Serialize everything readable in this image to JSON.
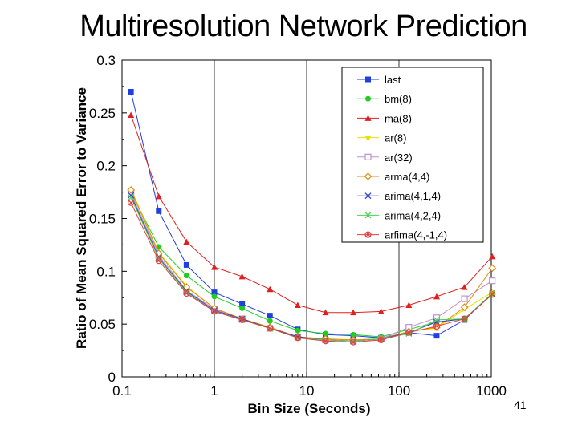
{
  "slide": {
    "title": "Multiresolution Network Prediction",
    "page_number": "41"
  },
  "chart_data": {
    "type": "line",
    "title": "",
    "xlabel": "Bin Size (Seconds)",
    "ylabel": "Ratio of Mean Squared Error to Variance",
    "xscale": "log",
    "xlim": [
      0.1,
      1000
    ],
    "ylim": [
      0,
      0.3
    ],
    "xticks": [
      0.1,
      1,
      10,
      100,
      1000
    ],
    "xtick_labels": [
      "0.1",
      "1",
      "10",
      "100",
      "1000"
    ],
    "yticks": [
      0,
      0.05,
      0.1,
      0.15,
      0.2,
      0.25,
      0.3
    ],
    "ytick_labels": [
      "0",
      "0.05",
      "0.1",
      "0.15",
      "0.2",
      "0.25",
      "0.3"
    ],
    "legend_position": "top-right",
    "x": [
      0.125,
      0.25,
      0.5,
      1,
      2,
      4,
      8,
      16,
      32,
      64,
      128,
      256,
      512,
      1024
    ],
    "series": [
      {
        "name": "last",
        "color": "#1f3fe0",
        "marker": "square-filled",
        "values": [
          0.27,
          0.157,
          0.106,
          0.08,
          0.069,
          0.058,
          0.045,
          0.04,
          0.039,
          0.037,
          0.042,
          0.039,
          0.054,
          0.079
        ]
      },
      {
        "name": "bm(8)",
        "color": "#22cc22",
        "marker": "circle-filled",
        "values": [
          0.175,
          0.123,
          0.096,
          0.076,
          0.065,
          0.053,
          0.044,
          0.041,
          0.04,
          0.038,
          0.045,
          0.052,
          0.055,
          0.079
        ]
      },
      {
        "name": "ma(8)",
        "color": "#e02020",
        "marker": "triangle-filled",
        "values": [
          0.248,
          0.171,
          0.128,
          0.104,
          0.095,
          0.083,
          0.068,
          0.061,
          0.061,
          0.062,
          0.068,
          0.076,
          0.085,
          0.114
        ]
      },
      {
        "name": "ar(8)",
        "color": "#e8e000",
        "marker": "star",
        "values": [
          0.178,
          0.118,
          0.086,
          0.065,
          0.055,
          0.047,
          0.038,
          0.036,
          0.035,
          0.036,
          0.043,
          0.046,
          0.064,
          0.08
        ]
      },
      {
        "name": "ar(32)",
        "color": "#c090d0",
        "marker": "square-open",
        "values": [
          0.174,
          0.115,
          0.082,
          0.064,
          0.055,
          0.046,
          0.038,
          0.035,
          0.034,
          0.036,
          0.047,
          0.056,
          0.074,
          0.091
        ]
      },
      {
        "name": "arma(4,4)",
        "color": "#e08a10",
        "marker": "diamond-open",
        "values": [
          0.177,
          0.117,
          0.085,
          0.065,
          0.055,
          0.047,
          0.038,
          0.036,
          0.035,
          0.036,
          0.043,
          0.047,
          0.066,
          0.103
        ]
      },
      {
        "name": "arima(4,1,4)",
        "color": "#3040d0",
        "marker": "x",
        "values": [
          0.172,
          0.113,
          0.081,
          0.063,
          0.055,
          0.046,
          0.038,
          0.035,
          0.034,
          0.036,
          0.042,
          0.052,
          0.055,
          0.078
        ]
      },
      {
        "name": "arima(4,2,4)",
        "color": "#50d050",
        "marker": "x",
        "values": [
          0.17,
          0.112,
          0.08,
          0.062,
          0.054,
          0.046,
          0.037,
          0.035,
          0.034,
          0.036,
          0.041,
          0.054,
          0.055,
          0.078
        ]
      },
      {
        "name": "arfima(4,-1,4)",
        "color": "#e04040",
        "marker": "circle-x",
        "values": [
          0.165,
          0.11,
          0.079,
          0.062,
          0.054,
          0.046,
          0.037,
          0.034,
          0.033,
          0.035,
          0.042,
          0.048,
          0.055,
          0.078
        ]
      }
    ]
  }
}
